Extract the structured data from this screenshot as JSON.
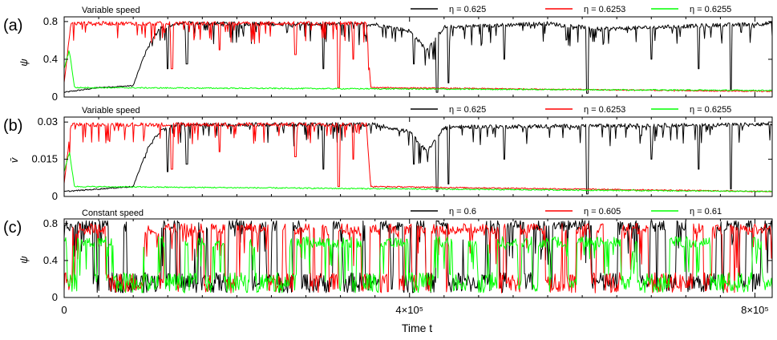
{
  "chart_data": [
    {
      "type": "line",
      "panel_letter": "(a)",
      "title": "Variable speed",
      "xlabel": "",
      "ylabel": "ψ",
      "xlim": [
        0,
        820000
      ],
      "ylim": [
        0,
        0.85
      ],
      "yticks": [
        0,
        0.4,
        0.8
      ],
      "ytick_labels": [
        "0",
        "0.4",
        "0.8"
      ],
      "legend_position": "top-right",
      "grid": false,
      "series": [
        {
          "name": "η = 0.625",
          "color": "#000000",
          "points": [
            [
              0,
              0.05
            ],
            [
              40000,
              0.1
            ],
            [
              80000,
              0.12
            ],
            [
              95000,
              0.5
            ],
            [
              110000,
              0.72
            ],
            [
              130000,
              0.78
            ],
            [
              360000,
              0.77
            ],
            [
              400000,
              0.7
            ],
            [
              420000,
              0.5
            ],
            [
              440000,
              0.74
            ],
            [
              560000,
              0.78
            ],
            [
              620000,
              0.72
            ],
            [
              820000,
              0.78
            ]
          ],
          "dips": [
            [
              120000,
              0.3
            ],
            [
              142000,
              0.35
            ],
            [
              300000,
              0.3
            ],
            [
              405000,
              0.35
            ],
            [
              432000,
              0.05
            ],
            [
              445000,
              0.15
            ],
            [
              510000,
              0.4
            ],
            [
              606000,
              0.04
            ],
            [
              680000,
              0.4
            ],
            [
              735000,
              0.3
            ],
            [
              772000,
              0.08
            ]
          ]
        },
        {
          "name": "η = 0.6253",
          "color": "#ff0000",
          "points": [
            [
              0,
              0.15
            ],
            [
              8000,
              0.78
            ],
            [
              350000,
              0.78
            ],
            [
              355000,
              0.1
            ],
            [
              820000,
              0.06
            ]
          ],
          "dips": [
            [
              125000,
              0.3
            ],
            [
              180000,
              0.5
            ],
            [
              268000,
              0.45
            ],
            [
              318000,
              0.1
            ],
            [
              335000,
              0.4
            ]
          ]
        },
        {
          "name": "η = 0.6255",
          "color": "#00ff00",
          "points": [
            [
              0,
              0.3
            ],
            [
              6000,
              0.5
            ],
            [
              12000,
              0.1
            ],
            [
              820000,
              0.07
            ]
          ],
          "dips": []
        }
      ]
    },
    {
      "type": "line",
      "panel_letter": "(b)",
      "title": "Variable speed",
      "xlabel": "",
      "ylabel": "v̄",
      "xlim": [
        0,
        820000
      ],
      "ylim": [
        0,
        0.032
      ],
      "yticks": [
        0,
        0.015,
        0.03
      ],
      "ytick_labels": [
        "0",
        "0.015",
        "0.03"
      ],
      "legend_position": "top-right",
      "grid": false,
      "series": [
        {
          "name": "η = 0.625",
          "color": "#000000",
          "points": [
            [
              0,
              0.002
            ],
            [
              40000,
              0.003
            ],
            [
              80000,
              0.004
            ],
            [
              95000,
              0.018
            ],
            [
              110000,
              0.026
            ],
            [
              130000,
              0.029
            ],
            [
              360000,
              0.029
            ],
            [
              400000,
              0.026
            ],
            [
              420000,
              0.018
            ],
            [
              440000,
              0.028
            ],
            [
              820000,
              0.029
            ]
          ],
          "dips": [
            [
              120000,
              0.01
            ],
            [
              142000,
              0.013
            ],
            [
              300000,
              0.011
            ],
            [
              405000,
              0.013
            ],
            [
              432000,
              0.002
            ],
            [
              445000,
              0.005
            ],
            [
              510000,
              0.015
            ],
            [
              606000,
              0.001
            ],
            [
              680000,
              0.015
            ],
            [
              735000,
              0.011
            ],
            [
              772000,
              0.003
            ]
          ]
        },
        {
          "name": "η = 0.6253",
          "color": "#ff0000",
          "points": [
            [
              0,
              0.005
            ],
            [
              8000,
              0.029
            ],
            [
              350000,
              0.029
            ],
            [
              355000,
              0.004
            ],
            [
              820000,
              0.002
            ]
          ],
          "dips": [
            [
              125000,
              0.011
            ],
            [
              180000,
              0.018
            ],
            [
              268000,
              0.016
            ],
            [
              318000,
              0.004
            ],
            [
              335000,
              0.015
            ]
          ]
        },
        {
          "name": "η = 0.6255",
          "color": "#00ff00",
          "points": [
            [
              0,
              0.01
            ],
            [
              6000,
              0.018
            ],
            [
              12000,
              0.004
            ],
            [
              820000,
              0.002
            ]
          ],
          "dips": []
        }
      ]
    },
    {
      "type": "line",
      "panel_letter": "(c)",
      "title": "Constant speed",
      "xlabel": "Time t",
      "ylabel": "ψ",
      "xlim": [
        0,
        820000
      ],
      "ylim": [
        0,
        0.85
      ],
      "yticks": [
        0,
        0.4,
        0.8
      ],
      "ytick_labels": [
        "0",
        "0.4",
        "0.8"
      ],
      "xticks": [
        0,
        400000,
        800000
      ],
      "xtick_labels": [
        "0",
        "4×10⁵",
        "8×10⁵"
      ],
      "legend_position": "top-right",
      "grid": false,
      "series": [
        {
          "name": "η = 0.6",
          "color": "#000000",
          "mean_high": 0.78,
          "low": 0.05
        },
        {
          "name": "η = 0.605",
          "color": "#ff0000",
          "mean_high": 0.74,
          "low": 0.05
        },
        {
          "name": "η = 0.61",
          "color": "#00ff00",
          "mean_high": 0.6,
          "low": 0.05
        }
      ]
    }
  ]
}
